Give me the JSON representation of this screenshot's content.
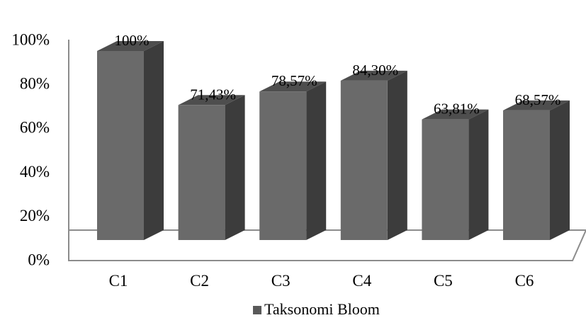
{
  "chart_data": {
    "type": "bar",
    "style": "3d-column",
    "categories": [
      "C1",
      "C2",
      "C3",
      "C4",
      "C5",
      "C6"
    ],
    "series": [
      {
        "name": "Taksonomi Bloom",
        "values": [
          100,
          71.43,
          78.57,
          84.3,
          63.81,
          68.57
        ],
        "labels": [
          "100%",
          "71,43%",
          "78,57%",
          "84,30%",
          "63,81%",
          "68,57%"
        ]
      }
    ],
    "ylim": [
      0,
      100
    ],
    "yticks": [
      0,
      20,
      40,
      60,
      80,
      100
    ],
    "ytick_labels": [
      "0%",
      "20%",
      "40%",
      "60%",
      "80%",
      "100%"
    ],
    "grid": false,
    "legend_position": "bottom",
    "colors": {
      "bar_front": "#6a6a6a",
      "bar_top": "#4e4e4e",
      "bar_side": "#3c3c3c",
      "axis": "#8c8c8c",
      "legend_swatch": "#595959"
    }
  }
}
